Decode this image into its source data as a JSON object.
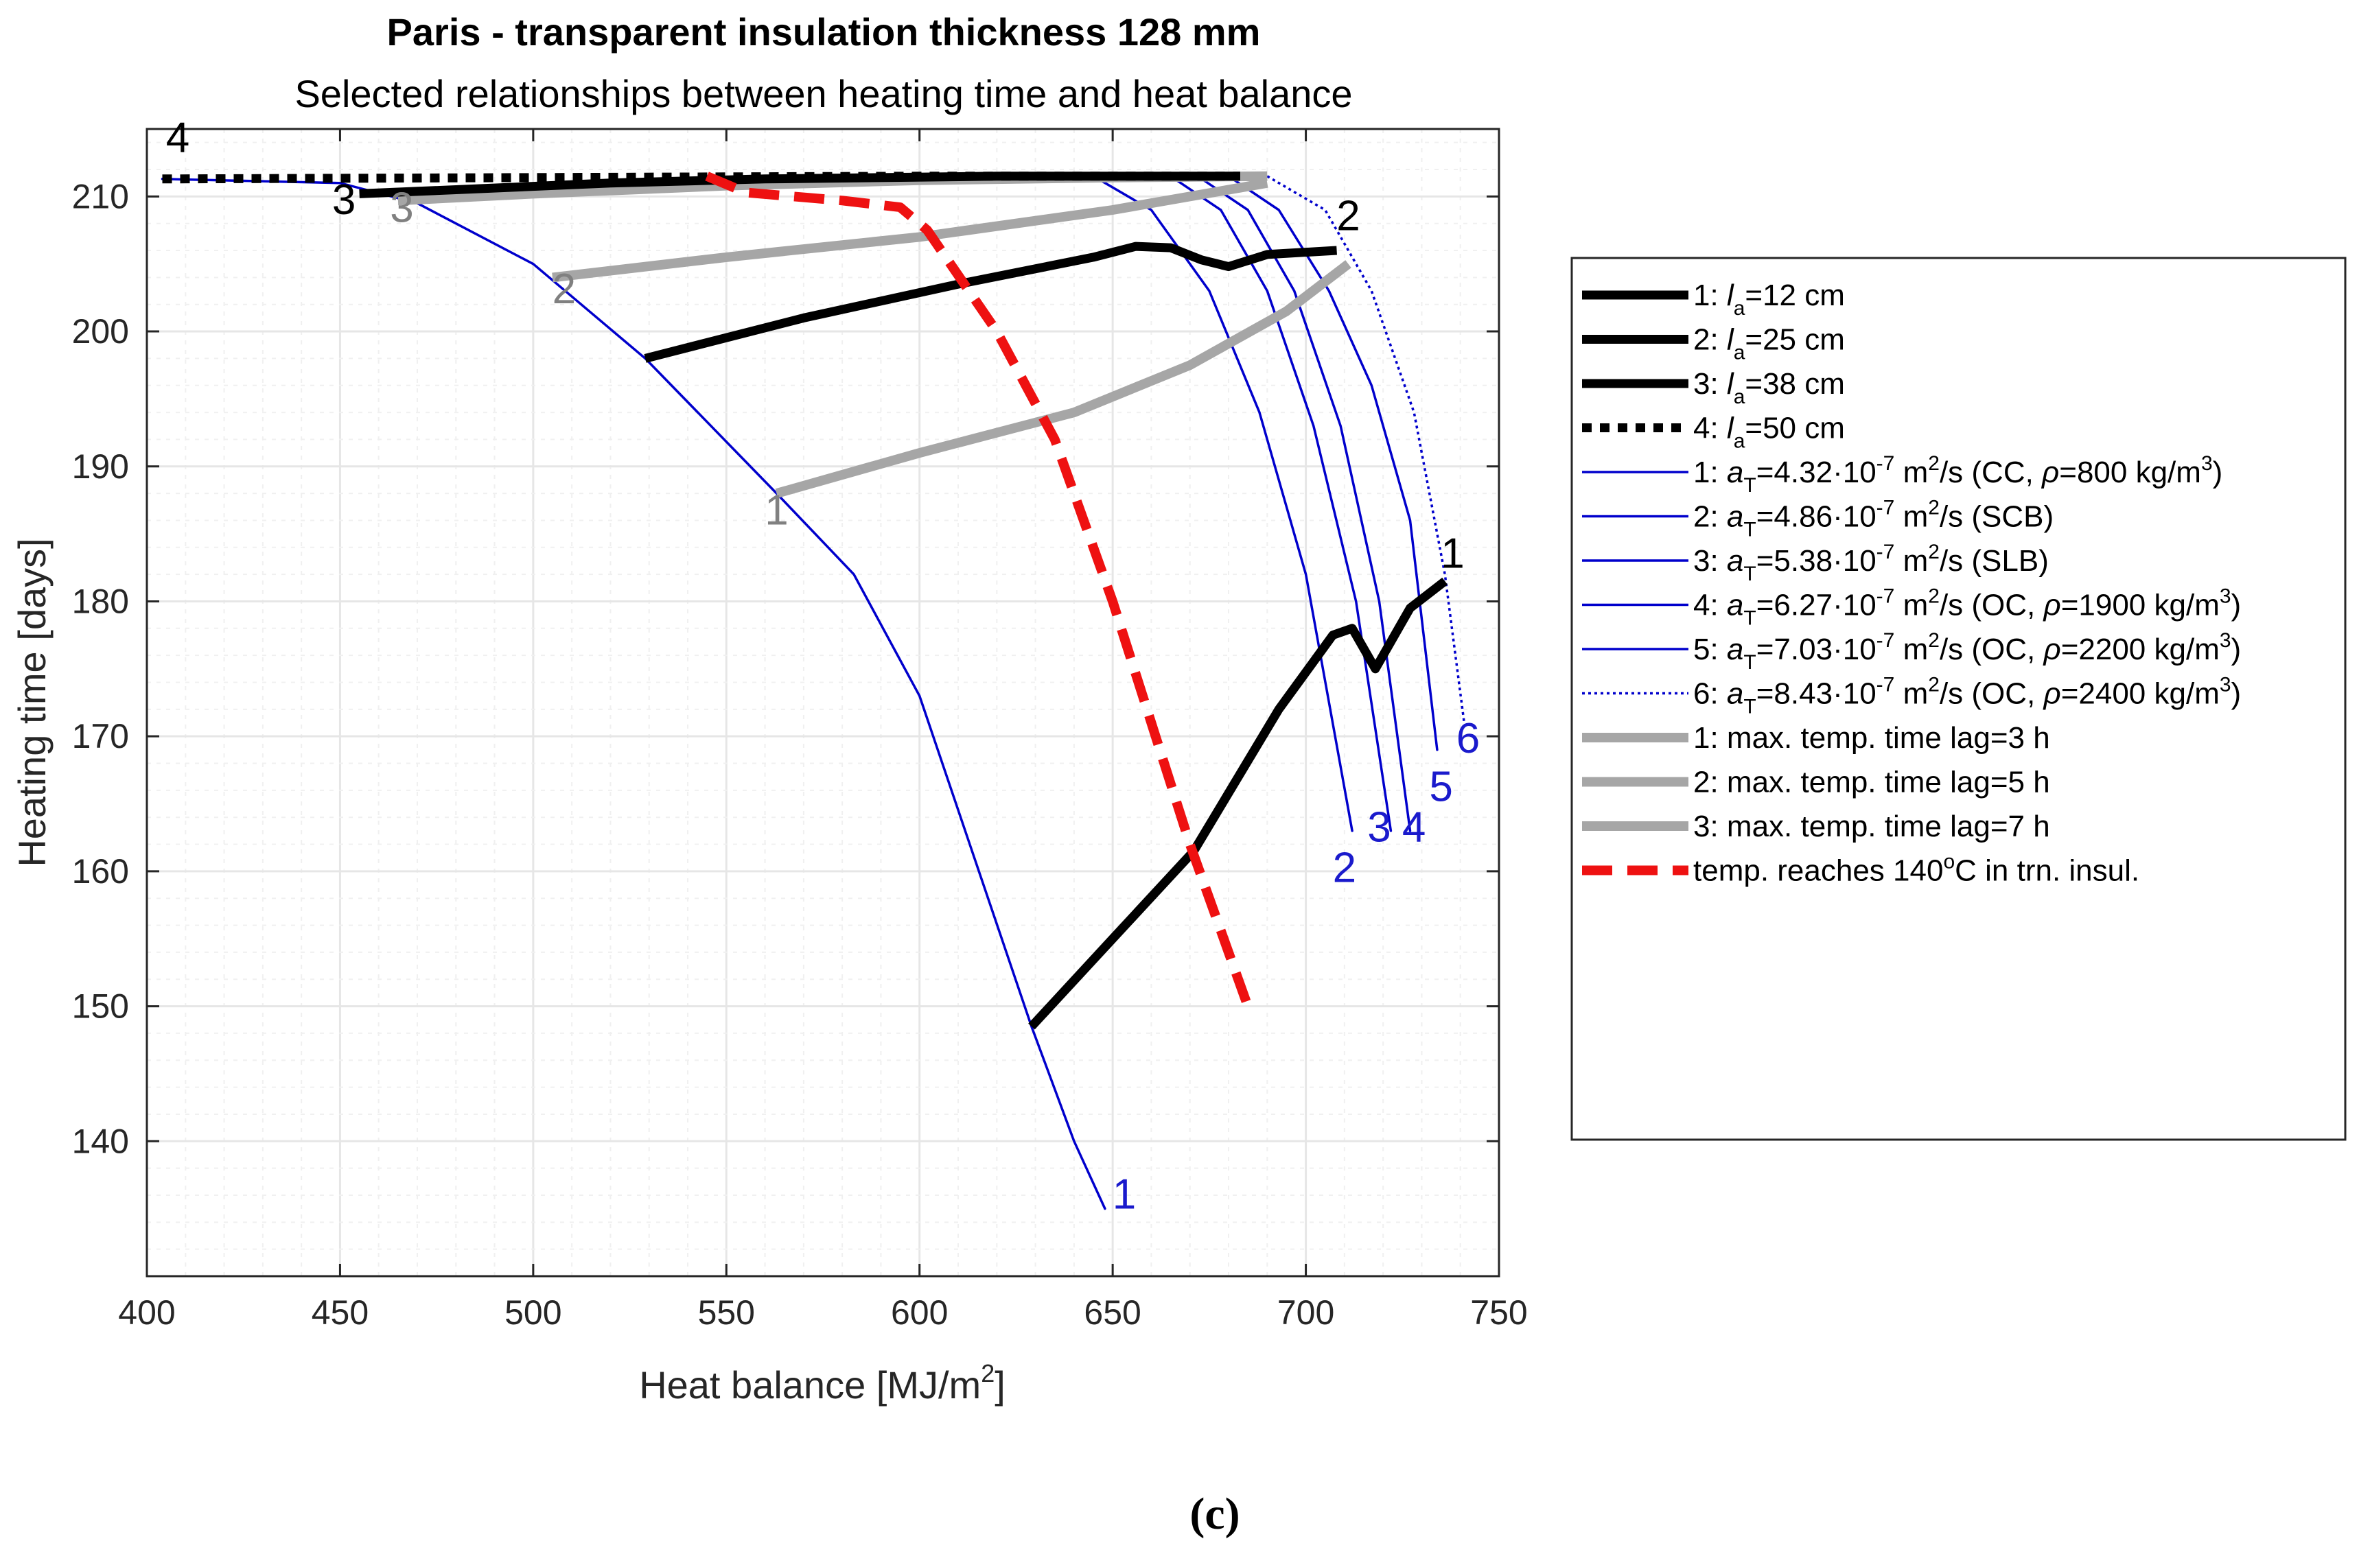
{
  "caption": "(c)",
  "chart_data": {
    "type": "line",
    "title": "Paris - transparent insulation thickness 128 mm",
    "subtitle": "Selected relationships between heating time and heat balance",
    "xlabel": "Heat balance [MJ/m²]",
    "xlabel_main": "Heat balance [MJ/m",
    "xlabel_sup": "2",
    "xlabel_end": "]",
    "ylabel": "Heating time [days]",
    "xlim": [
      400,
      750
    ],
    "ylim": [
      130,
      215
    ],
    "grid": true,
    "minor_grid": true,
    "legend_position": "outside-right",
    "x_ticks": [
      400,
      450,
      500,
      550,
      600,
      650,
      700,
      750
    ],
    "y_ticks": [
      140,
      150,
      160,
      170,
      180,
      190,
      200,
      210
    ],
    "colors": {
      "black": "#000000",
      "blue": "#0000cc",
      "gray": "#a6a6a6",
      "red": "#ee1111",
      "grid": "#e6e6e6",
      "minor_grid": "#f0f0f0",
      "label_blue": "#1a1acc",
      "label_gray": "#808080"
    },
    "series": [
      {
        "group": "air_layer",
        "name": "1",
        "legend": [
          "1: ",
          "l",
          "a",
          "=12 cm"
        ],
        "color": "#000000",
        "style": "solid",
        "x": [
          629,
          650,
          671,
          693,
          707,
          712,
          718,
          727,
          736
        ],
        "y": [
          148.5,
          155,
          161.5,
          172,
          177.5,
          178,
          175,
          179.5,
          181.5
        ]
      },
      {
        "group": "air_layer",
        "name": "2",
        "legend": [
          "2: ",
          "l",
          "a",
          "=25 cm"
        ],
        "color": "#000000",
        "style": "solid",
        "x": [
          529,
          570,
          610,
          645,
          656,
          665,
          673,
          680,
          690,
          708
        ],
        "y": [
          198,
          201,
          203.5,
          205.5,
          206.3,
          206.2,
          205.3,
          204.8,
          205.7,
          206
        ]
      },
      {
        "group": "air_layer",
        "name": "3",
        "legend": [
          "3: ",
          "l",
          "a",
          "=38 cm"
        ],
        "color": "#000000",
        "style": "solid",
        "x": [
          455,
          480,
          520,
          560,
          620,
          683
        ],
        "y": [
          210.2,
          210.5,
          211,
          211.3,
          211.5,
          211.5
        ]
      },
      {
        "group": "air_layer",
        "name": "4",
        "legend": [
          "4: ",
          "l",
          "a",
          "=50 cm"
        ],
        "color": "#000000",
        "style": "dotted",
        "x": [
          404,
          500,
          600,
          683
        ],
        "y": [
          211.3,
          211.4,
          211.5,
          211.5
        ]
      },
      {
        "group": "diffusivity",
        "name": "1",
        "legend": [
          "1: ",
          "a",
          "T",
          "=4.32·10",
          "-7",
          " m",
          "2",
          "/s (CC, ",
          "ρ",
          "=800 kg/m",
          "3",
          ")"
        ],
        "color": "#0000cc",
        "style": "solid",
        "x": [
          404,
          450,
          470,
          500,
          529,
          563,
          583,
          600,
          613,
          629,
          640,
          648
        ],
        "y": [
          211.3,
          211,
          209.5,
          205,
          198,
          188,
          182,
          173,
          162,
          148.5,
          140,
          135
        ]
      },
      {
        "group": "diffusivity",
        "name": "2",
        "legend": [
          "2: ",
          "a",
          "T",
          "=4.86·10",
          "-7",
          " m",
          "2",
          "/s (SCB)"
        ],
        "color": "#0000cc",
        "style": "solid",
        "x": [
          645,
          660,
          675,
          688,
          700,
          712
        ],
        "y": [
          211.5,
          209,
          203,
          194,
          182,
          163
        ]
      },
      {
        "group": "diffusivity",
        "name": "3",
        "legend": [
          "3: ",
          "a",
          "T",
          "=5.38·10",
          "-7",
          " m",
          "2",
          "/s (SLB)"
        ],
        "color": "#0000cc",
        "style": "solid",
        "x": [
          665,
          678,
          690,
          702,
          713,
          722
        ],
        "y": [
          211.5,
          209,
          203,
          193,
          180,
          163
        ]
      },
      {
        "group": "diffusivity",
        "name": "4",
        "legend": [
          "4: ",
          "a",
          "T",
          "=6.27·10",
          "-7",
          " m",
          "2",
          "/s (OC, ",
          "ρ",
          "=1900 kg/m",
          "3",
          ")"
        ],
        "color": "#0000cc",
        "style": "solid",
        "x": [
          672,
          685,
          697,
          709,
          719,
          727
        ],
        "y": [
          211.5,
          209,
          203,
          193,
          180,
          163
        ]
      },
      {
        "group": "diffusivity",
        "name": "5",
        "legend": [
          "5: ",
          "a",
          "T",
          "=7.03·10",
          "-7",
          " m",
          "2",
          "/s (OC, ",
          "ρ",
          "=2200 kg/m",
          "3",
          ")"
        ],
        "color": "#0000cc",
        "style": "solid",
        "x": [
          680,
          693,
          706,
          717,
          727,
          734
        ],
        "y": [
          211.5,
          209,
          203,
          196,
          186,
          169
        ]
      },
      {
        "group": "diffusivity",
        "name": "6",
        "legend": [
          "6: ",
          "a",
          "T",
          "=8.43·10",
          "-7",
          " m",
          "2",
          "/s (OC, ",
          "ρ",
          "=2400 kg/m",
          "3",
          ")"
        ],
        "color": "#0000cc",
        "style": "dotted",
        "x": [
          690,
          705,
          717,
          728,
          736,
          741
        ],
        "y": [
          211.5,
          209,
          203,
          194,
          182,
          171
        ]
      },
      {
        "group": "time_lag",
        "name": "1",
        "legend": [
          "1: max. temp. time lag=3 h"
        ],
        "color": "#a6a6a6",
        "style": "solid",
        "x": [
          563,
          600,
          640,
          670,
          695,
          711
        ],
        "y": [
          188,
          191,
          194,
          197.5,
          201.5,
          205
        ]
      },
      {
        "group": "time_lag",
        "name": "2",
        "legend": [
          "2: max. temp. time lag=5 h"
        ],
        "color": "#a6a6a6",
        "style": "solid",
        "x": [
          505,
          550,
          600,
          650,
          690
        ],
        "y": [
          204,
          205.5,
          207,
          209,
          211
        ]
      },
      {
        "group": "time_lag",
        "name": "3",
        "legend": [
          "3: max. temp. time lag=7 h"
        ],
        "color": "#a6a6a6",
        "style": "solid",
        "x": [
          465,
          500,
          550,
          600,
          650,
          690
        ],
        "y": [
          209.7,
          210.2,
          210.8,
          211.2,
          211.4,
          211.5
        ]
      },
      {
        "group": "limit",
        "name": "140C",
        "legend": [
          "temp. reaches 140",
          "o",
          "C in trn. insul."
        ],
        "color": "#ee1111",
        "style": "dashed",
        "x": [
          545,
          555,
          580,
          595,
          602,
          620,
          635,
          650,
          670,
          685
        ],
        "y": [
          211.5,
          210.3,
          209.7,
          209.2,
          207.5,
          200,
          192,
          180,
          162,
          150
        ]
      }
    ],
    "annotations": [
      {
        "text": "4",
        "x": 408,
        "y": 213.3,
        "color": "#000000"
      },
      {
        "text": "3",
        "x": 451,
        "y": 208.7,
        "color": "#000000"
      },
      {
        "text": "3",
        "x": 466,
        "y": 208.1,
        "color": "#808080"
      },
      {
        "text": "2",
        "x": 508,
        "y": 202.1,
        "color": "#808080"
      },
      {
        "text": "1",
        "x": 563,
        "y": 185.7,
        "color": "#808080"
      },
      {
        "text": "2",
        "x": 711,
        "y": 207.5,
        "color": "#000000"
      },
      {
        "text": "1",
        "x": 738,
        "y": 182.5,
        "color": "#000000"
      },
      {
        "text": "1",
        "x": 653,
        "y": 135,
        "color": "#1a1acc"
      },
      {
        "text": "2",
        "x": 710,
        "y": 159.2,
        "color": "#1a1acc"
      },
      {
        "text": "3",
        "x": 719,
        "y": 162.2,
        "color": "#1a1acc"
      },
      {
        "text": "4",
        "x": 728,
        "y": 162.2,
        "color": "#1a1acc"
      },
      {
        "text": "5",
        "x": 735,
        "y": 165.2,
        "color": "#1a1acc"
      },
      {
        "text": "6",
        "x": 742,
        "y": 168.8,
        "color": "#1a1acc"
      }
    ]
  }
}
